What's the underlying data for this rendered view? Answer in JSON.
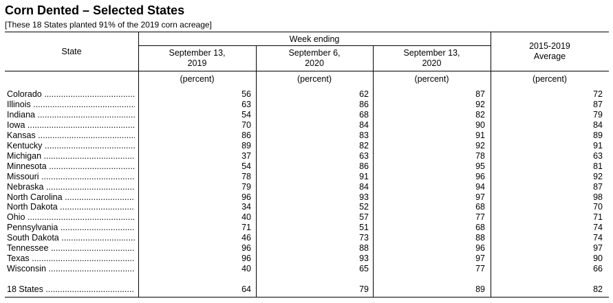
{
  "title": "Corn Dented – Selected States",
  "subtitle": "[These 18 States planted 91% of the 2019 corn acreage]",
  "headers": {
    "state": "State",
    "week_ending": "Week ending",
    "col1": [
      "September 13,",
      "2019"
    ],
    "col2": [
      "September 6,",
      "2020"
    ],
    "col3": [
      "September 13,",
      "2020"
    ],
    "col4": [
      "2015-2019",
      "Average"
    ],
    "unit": "(percent)"
  },
  "rows": [
    {
      "state": "Colorado",
      "values": [
        "56",
        "62",
        "87",
        "72"
      ]
    },
    {
      "state": "Illinois",
      "values": [
        "63",
        "86",
        "92",
        "87"
      ]
    },
    {
      "state": "Indiana",
      "values": [
        "54",
        "68",
        "82",
        "79"
      ]
    },
    {
      "state": "Iowa",
      "values": [
        "70",
        "84",
        "90",
        "84"
      ]
    },
    {
      "state": "Kansas",
      "values": [
        "86",
        "83",
        "91",
        "89"
      ]
    },
    {
      "state": "Kentucky",
      "values": [
        "89",
        "82",
        "92",
        "91"
      ]
    },
    {
      "state": "Michigan",
      "values": [
        "37",
        "63",
        "78",
        "63"
      ]
    },
    {
      "state": "Minnesota",
      "values": [
        "54",
        "86",
        "95",
        "81"
      ]
    },
    {
      "state": "Missouri",
      "values": [
        "78",
        "91",
        "96",
        "92"
      ]
    },
    {
      "state": "Nebraska",
      "values": [
        "79",
        "84",
        "94",
        "87"
      ]
    },
    {
      "state": "North Carolina",
      "values": [
        "96",
        "93",
        "97",
        "98"
      ]
    },
    {
      "state": "North Dakota",
      "values": [
        "34",
        "52",
        "68",
        "70"
      ]
    },
    {
      "state": "Ohio",
      "values": [
        "40",
        "57",
        "77",
        "71"
      ]
    },
    {
      "state": "Pennsylvania",
      "values": [
        "71",
        "51",
        "68",
        "74"
      ]
    },
    {
      "state": "South Dakota",
      "values": [
        "46",
        "73",
        "88",
        "74"
      ]
    },
    {
      "state": "Tennessee",
      "values": [
        "96",
        "88",
        "96",
        "97"
      ]
    },
    {
      "state": "Texas",
      "values": [
        "96",
        "93",
        "97",
        "90"
      ]
    },
    {
      "state": "Wisconsin",
      "values": [
        "40",
        "65",
        "77",
        "66"
      ]
    }
  ],
  "total": {
    "state": "18 States",
    "values": [
      "64",
      "79",
      "89",
      "82"
    ]
  }
}
